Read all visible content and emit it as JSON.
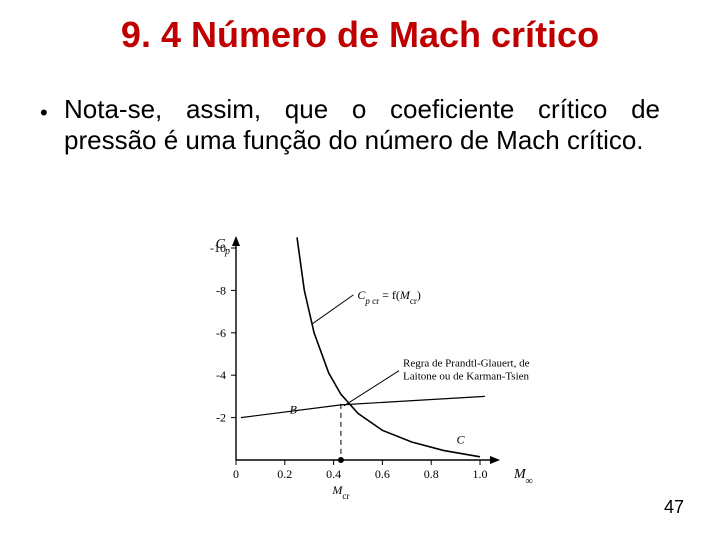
{
  "title": "9. 4 Número de Mach crítico",
  "bullet_text": "Nota-se, assim, que o coeficiente crítico de pressão é uma função do número de Mach crítico.",
  "page_number": "47",
  "chart": {
    "type": "line",
    "background_color": "#ffffff",
    "axis_color": "#000000",
    "curve_color": "#000000",
    "dashed_color": "#000000",
    "y_label": "Cₚ",
    "x_label": "M∞",
    "x_sub_label": "M꜀ᵣ",
    "x_ticks": [
      "0",
      "0.2",
      "0.4",
      "0.6",
      "0.8",
      "1.0"
    ],
    "y_ticks": [
      "-2",
      "-4",
      "-6",
      "-8",
      "-10"
    ],
    "formula_label": "Cₚ꜀ᵣ = f(M꜀ᵣ)",
    "side_label_1": "Regra de Prandtl-Glauert, de",
    "side_label_2": "Laitone ou de Karman-Tsien",
    "point_B": "B",
    "point_C": "C",
    "xlim": [
      0,
      1.0
    ],
    "ylim": [
      0,
      -10
    ],
    "curve_points": [
      [
        0.25,
        -10.5
      ],
      [
        0.28,
        -8.0
      ],
      [
        0.32,
        -6.0
      ],
      [
        0.38,
        -4.1
      ],
      [
        0.43,
        -3.1
      ],
      [
        0.5,
        -2.2
      ],
      [
        0.6,
        -1.4
      ],
      [
        0.72,
        -0.85
      ],
      [
        0.85,
        -0.45
      ],
      [
        1.0,
        -0.15
      ]
    ],
    "line_B_points": [
      [
        0.02,
        -2.0
      ],
      [
        0.43,
        -2.6
      ],
      [
        1.02,
        -3.0
      ]
    ],
    "intersection": [
      0.43,
      -2.65
    ],
    "mcr_marker_x": 0.43,
    "axis_font_size": 14,
    "tick_font_size": 12,
    "anno_font_size": 12,
    "line_width": 1.6
  }
}
